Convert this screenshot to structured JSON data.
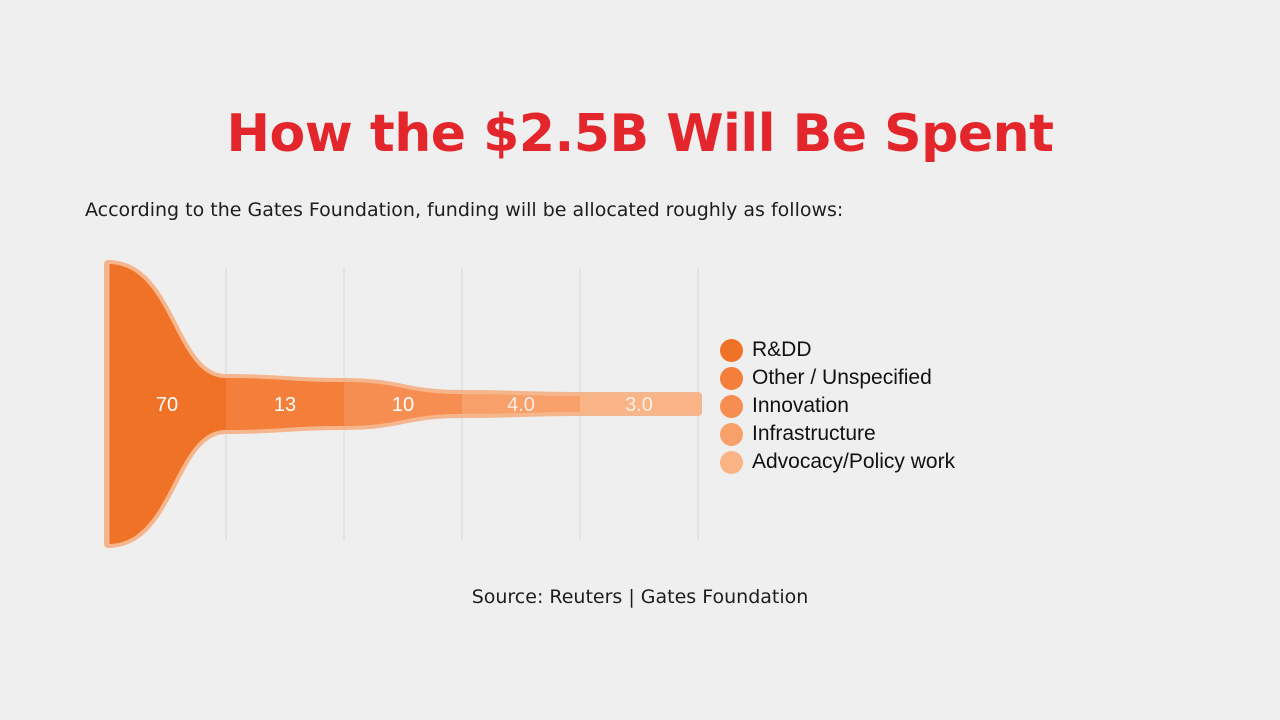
{
  "title": "How the $2.5B Will Be Spent",
  "subtitle": "According to the Gates Foundation, funding will be allocated roughly as follows:",
  "source": "Source: Reuters | Gates Foundation",
  "colors": {
    "title": "#e3262b",
    "series": [
      "#f07226",
      "#f37f3a",
      "#f58e50",
      "#f7a069",
      "#f9b384"
    ],
    "halo": "#f6b68d",
    "grid": "#d9d9d9"
  },
  "chart_data": {
    "type": "funnel",
    "categories": [
      "R&DD",
      "Other / Unspecified",
      "Innovation",
      "Infrastructure",
      "Advocacy/Policy work"
    ],
    "values": [
      70,
      13,
      10,
      4.0,
      3.0
    ],
    "value_labels": [
      "70",
      "13",
      "10",
      "4.0",
      "3.0"
    ],
    "legend_position": "right",
    "grid": true
  }
}
